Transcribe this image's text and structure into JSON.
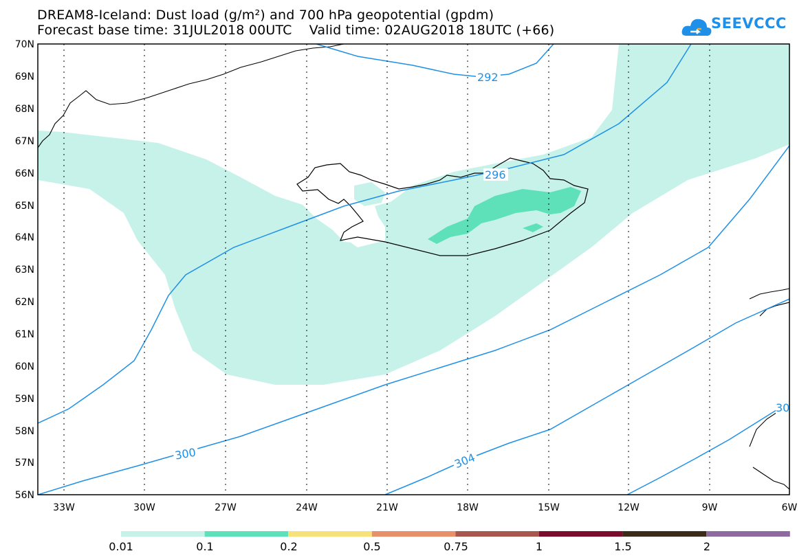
{
  "header": {
    "title_line1": "DREAM8-Iceland: Dust load (g/m²) and 700 hPa geopotential (gpdm)",
    "title_line2": "Forecast base time: 31JUL2018 00UTC    Valid time: 02AUG2018 18UTC (+66)"
  },
  "logo": {
    "text": "SEEVCCC",
    "icon": "cloud-logo-icon",
    "color": "#1e90e8"
  },
  "map": {
    "lat_labels": [
      "70N",
      "69N",
      "68N",
      "67N",
      "66N",
      "65N",
      "64N",
      "63N",
      "62N",
      "61N",
      "60N",
      "59N",
      "58N",
      "57N",
      "56N"
    ],
    "lon_labels": [
      "33W",
      "30W",
      "27W",
      "24W",
      "21W",
      "18W",
      "15W",
      "12W",
      "9W",
      "6W"
    ],
    "contour_labels": [
      "292",
      "296",
      "300",
      "304",
      "30"
    ],
    "contour_color": "#1e90e8",
    "grid": "dotted"
  },
  "colorbar": {
    "labels": [
      "0.01",
      "0.1",
      "0.2",
      "0.5",
      "0.75",
      "1",
      "1.5",
      "2"
    ],
    "colors": [
      "#c6f2ea",
      "#5ee0b8",
      "#f7e17a",
      "#e8906a",
      "#a8574f",
      "#7a0c2e",
      "#3d2b1a",
      "#8f6aa0"
    ]
  }
}
